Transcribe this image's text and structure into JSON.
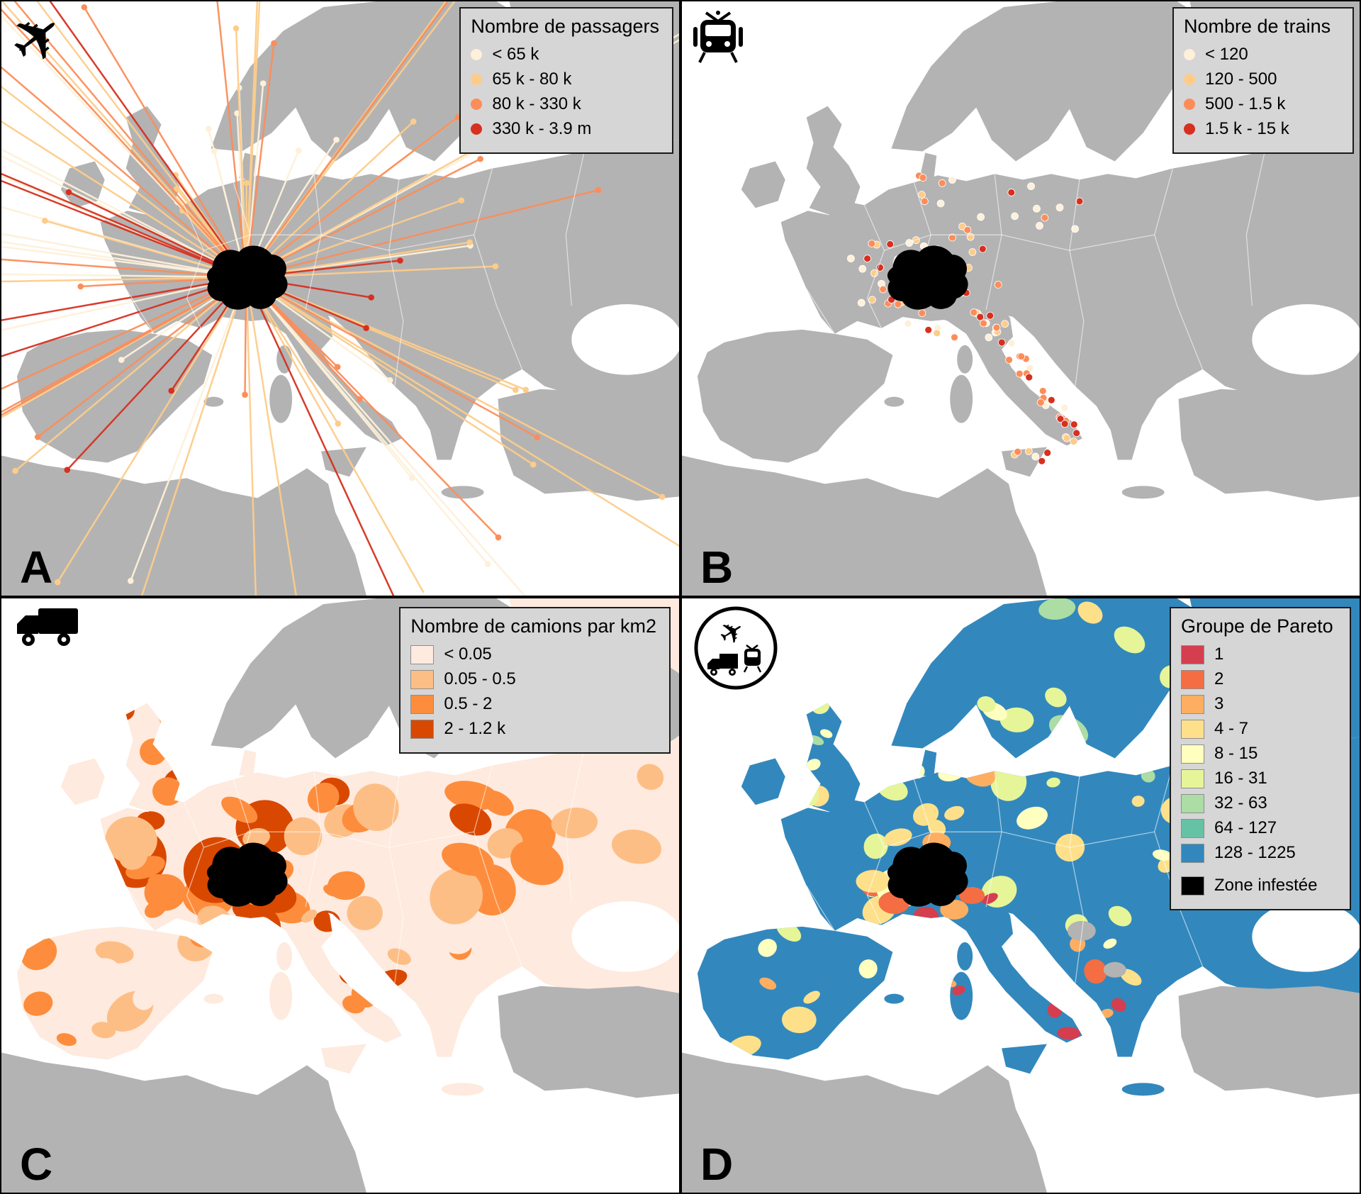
{
  "icons": {
    "plane_glyph": "✈"
  },
  "colors": {
    "sea": "#ffffff",
    "land_gray": "#b3b3b3",
    "no_data_gray": "#b3b3b3",
    "infested": "#000000",
    "flow_palette": [
      "#fef0d9",
      "#fdcc8a",
      "#fc8d59",
      "#d7301f"
    ],
    "truck_palette": [
      "#feeade",
      "#fdbe85",
      "#fd8d3c",
      "#d94801"
    ],
    "truck_base": "#feeade",
    "pareto_palette": [
      "#d53e4f",
      "#f46d43",
      "#fdae61",
      "#fee08b",
      "#ffffbf",
      "#e6f598",
      "#abdda4",
      "#66c2a5",
      "#3288bd"
    ],
    "pareto_base": "#3288bd"
  },
  "panels": [
    {
      "letter": "A",
      "icon": "airplane",
      "map_type": "flows",
      "legend": {
        "title": "Nombre de passagers",
        "swatch": "dot",
        "items": [
          {
            "label": "< 65 k",
            "color": "#fef0d9"
          },
          {
            "label": "65 k - 80 k",
            "color": "#fdcc8a"
          },
          {
            "label": "80 k - 330 k",
            "color": "#fc8d59"
          },
          {
            "label": "330 k - 3.9 m",
            "color": "#d7301f"
          }
        ]
      }
    },
    {
      "letter": "B",
      "icon": "train",
      "map_type": "dots",
      "legend": {
        "title": "Nombre de trains",
        "swatch": "dot",
        "items": [
          {
            "label": "< 120",
            "color": "#fef0d9"
          },
          {
            "label": "120 - 500",
            "color": "#fdcc8a"
          },
          {
            "label": "500 - 1.5 k",
            "color": "#fc8d59"
          },
          {
            "label": "1.5 k - 15 k",
            "color": "#d7301f"
          }
        ]
      }
    },
    {
      "letter": "C",
      "icon": "truck",
      "map_type": "choropleth-trucks",
      "legend": {
        "title": "Nombre de camions par km2",
        "swatch": "square",
        "items": [
          {
            "label": "< 0.05",
            "color": "#feeade"
          },
          {
            "label": "0.05 - 0.5",
            "color": "#fdbe85"
          },
          {
            "label": "0.5 - 2",
            "color": "#fd8d3c"
          },
          {
            "label": "2 - 1.2 k",
            "color": "#d94801"
          }
        ]
      }
    },
    {
      "letter": "D",
      "icon": "multimodal",
      "map_type": "choropleth-pareto",
      "legend": {
        "title": "Groupe de Pareto",
        "swatch": "square",
        "items": [
          {
            "label": "1",
            "color": "#d53e4f"
          },
          {
            "label": "2",
            "color": "#f46d43"
          },
          {
            "label": "3",
            "color": "#fdae61"
          },
          {
            "label": "4 - 7",
            "color": "#fee08b"
          },
          {
            "label": "8 - 15",
            "color": "#ffffbf"
          },
          {
            "label": "16 - 31",
            "color": "#e6f598"
          },
          {
            "label": "32 - 63",
            "color": "#abdda4"
          },
          {
            "label": "64 - 127",
            "color": "#66c2a5"
          },
          {
            "label": "128 - 1225",
            "color": "#3288bd"
          },
          {
            "label": "Zone infestée",
            "color": "#000000",
            "separated": true
          }
        ]
      }
    }
  ]
}
